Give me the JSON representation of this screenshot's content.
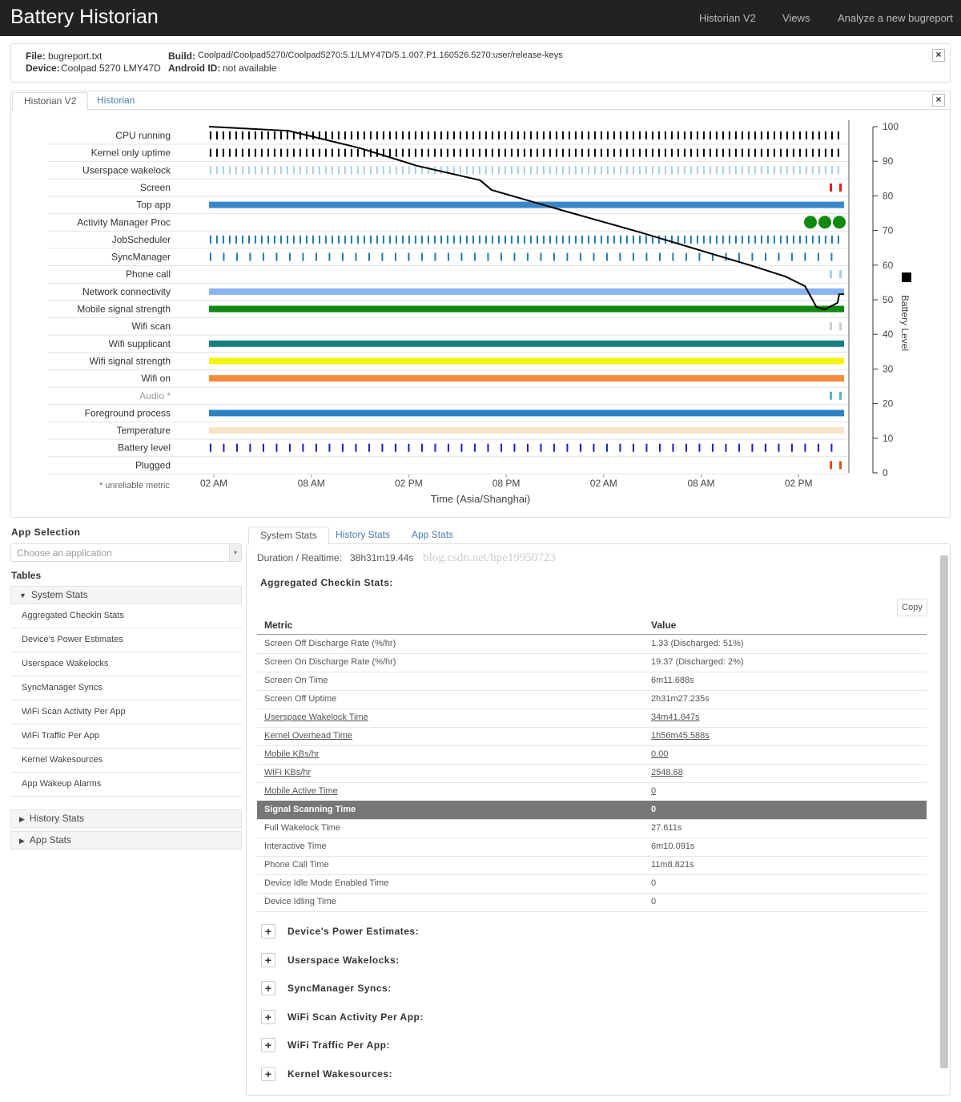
{
  "header": {
    "title": "Battery Historian",
    "menu": [
      "Historian V2",
      "Views",
      "Analyze a new bugreport"
    ]
  },
  "info": {
    "file_label": "File:",
    "file": "bugreport.txt",
    "device_label": "Device:",
    "device": "Coolpad 5270 LMY47D",
    "build_label": "Build:",
    "build": "Coolpad/Coolpad5270/Coolpad5270:5.1/LMY47D/5.1.007.P1.160526.5270:user/release-keys",
    "android_id_label": "Android ID:",
    "android_id": "not available"
  },
  "chart_tabs": [
    "Historian V2",
    "Historian"
  ],
  "chart_data": {
    "type": "line",
    "xlabel": "Time (Asia/Shanghai)",
    "footnote": "* unreliable metric",
    "x": [
      -0.3,
      4.6,
      9.0,
      12.5,
      16.4,
      17.1,
      21.4,
      26.3,
      31.2,
      33.2,
      35.2,
      36.4,
      37.1,
      37.6,
      38.4,
      38.5,
      38.8
    ],
    "series": [
      {
        "name": "Battery Level",
        "color": "#000000",
        "axis": "y2",
        "values": [
          100,
          98.8,
          93.8,
          88.7,
          84.5,
          81.7,
          75.9,
          69.4,
          62.5,
          59.7,
          56.7,
          53.9,
          47.9,
          47.2,
          49.1,
          51.6,
          51.6
        ]
      }
    ],
    "xlim": [
      -0.3,
      38.8
    ],
    "xticks": [
      {
        "value": 0,
        "label": "02 AM"
      },
      {
        "value": 6,
        "label": "08 AM"
      },
      {
        "value": 12,
        "label": "02 PM"
      },
      {
        "value": 18,
        "label": "08 PM"
      },
      {
        "value": 24,
        "label": "02 AM"
      },
      {
        "value": 30,
        "label": "08 AM"
      },
      {
        "value": 36,
        "label": "02 PM"
      }
    ],
    "y2lim": [
      0,
      100
    ],
    "y2ticks": [
      0,
      10,
      20,
      30,
      40,
      50,
      60,
      70,
      80,
      90,
      100
    ],
    "rows": [
      {
        "label": "CPU running",
        "color": "#000000",
        "style": "ticks"
      },
      {
        "label": "Kernel only uptime",
        "color": "#000000",
        "style": "ticks"
      },
      {
        "label": "Userspace wakelock",
        "color": "#a6cee3",
        "style": "ticks"
      },
      {
        "label": "Screen",
        "color": "#e31a1c",
        "style": "few"
      },
      {
        "label": "Top app",
        "color": "#3a87c8",
        "style": "bar"
      },
      {
        "label": "Activity Manager Proc",
        "color": "#0f8a0f",
        "style": "dots"
      },
      {
        "label": "JobScheduler",
        "color": "#1f78b4",
        "style": "ticks"
      },
      {
        "label": "SyncManager",
        "color": "#1f78b4",
        "style": "sparse"
      },
      {
        "label": "Phone call",
        "color": "#a6cee3",
        "style": "few"
      },
      {
        "label": "Network connectivity",
        "color": "#8ab4f0",
        "style": "bar"
      },
      {
        "label": "Mobile signal strength",
        "color": "#118811",
        "style": "bar"
      },
      {
        "label": "Wifi scan",
        "color": "#cccccc",
        "style": "few"
      },
      {
        "label": "Wifi supplicant",
        "color": "#1a7f82",
        "style": "bar"
      },
      {
        "label": "Wifi signal strength",
        "color": "#f2f20a",
        "style": "bar"
      },
      {
        "label": "Wifi on",
        "color": "#f38b3a",
        "style": "bar"
      },
      {
        "label": "Audio *",
        "color": "#5ab0c8",
        "style": "few"
      },
      {
        "label": "Foreground process",
        "color": "#2d7fc0",
        "style": "bar"
      },
      {
        "label": "Temperature",
        "color": "#f9e4c8",
        "style": "bar"
      },
      {
        "label": "Battery level",
        "color": "#1c1cc8",
        "style": "sparse"
      },
      {
        "label": "Plugged",
        "color": "#e0501c",
        "style": "few"
      }
    ]
  },
  "app_selection": {
    "title": "App Selection",
    "placeholder": "Choose an application"
  },
  "tables": {
    "title": "Tables",
    "sections": [
      {
        "name": "System Stats",
        "items": [
          "Aggregated Checkin Stats",
          "Device's Power Estimates",
          "Userspace Wakelocks",
          "SyncManager Syncs",
          "WiFi Scan Activity Per App",
          "WiFi Traffic Per App",
          "Kernel Wakesources",
          "App Wakeup Alarms"
        ]
      },
      {
        "name": "History Stats",
        "items": []
      },
      {
        "name": "App Stats",
        "items": []
      }
    ]
  },
  "stats": {
    "tabs": [
      "System Stats",
      "History Stats",
      "App Stats"
    ],
    "duration_label": "Duration / Realtime:",
    "duration": "38h31m19.44s",
    "watermark": "blog.csdn.net/hpe19950723",
    "section_title": "Aggregated Checkin Stats:",
    "copy": "Copy",
    "columns": [
      "Metric",
      "Value"
    ],
    "rows": [
      {
        "metric": "Screen Off Discharge Rate (%/hr)",
        "value": "1.33 (Discharged: 51%)"
      },
      {
        "metric": "Screen On Discharge Rate (%/hr)",
        "value": "19.37 (Discharged: 2%)"
      },
      {
        "metric": "Screen On Time",
        "value": "6m11.688s"
      },
      {
        "metric": "Screen Off Uptime",
        "value": "2h31m27.235s"
      },
      {
        "metric": "Userspace Wakelock Time",
        "value": "34m41.647s",
        "link": true
      },
      {
        "metric": "Kernel Overhead Time",
        "value": "1h56m45.588s",
        "link": true
      },
      {
        "metric": "Mobile KBs/hr",
        "value": "0.00",
        "link": true
      },
      {
        "metric": "WiFi KBs/hr",
        "value": "2548.68",
        "link": true
      },
      {
        "metric": "Mobile Active Time",
        "value": "0",
        "link": true
      },
      {
        "metric": "Signal Scanning Time",
        "value": "0",
        "highlight": true
      },
      {
        "metric": "Full Wakelock Time",
        "value": "27.611s"
      },
      {
        "metric": "Interactive Time",
        "value": "6m10.091s"
      },
      {
        "metric": "Phone Call Time",
        "value": "11m8.821s"
      },
      {
        "metric": "Device Idle Mode Enabled Time",
        "value": "0"
      },
      {
        "metric": "Device Idling Time",
        "value": "0"
      }
    ],
    "collapsed": [
      "Device's Power Estimates:",
      "Userspace Wakelocks:",
      "SyncManager Syncs:",
      "WiFi Scan Activity Per App:",
      "WiFi Traffic Per App:",
      "Kernel Wakesources:"
    ]
  }
}
